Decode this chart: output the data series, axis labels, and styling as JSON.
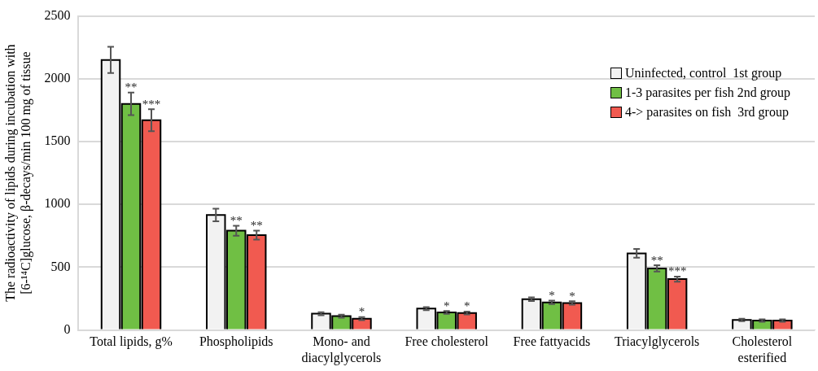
{
  "chart_data": {
    "type": "bar",
    "categories": [
      "Total lipids, g%",
      "Phospholipids",
      "Mono- and diacylglycerols",
      "Free cholesterol",
      "Free fattyacids",
      "Triacylglycerols",
      "Cholesterol esterified"
    ],
    "ylabel": "The radioactivity of lipids during incubation with [6-¹⁴C]glucose, β-decays/min 100 mg of tissue",
    "series": [
      {
        "name": "Uninfected, control  1st group",
        "color": "#f2f2f2",
        "values": [
          2150,
          915,
          130,
          170,
          245,
          610,
          80
        ],
        "errors": [
          105,
          50,
          12,
          12,
          14,
          35,
          10
        ],
        "value_labels": [
          null,
          null,
          null,
          null,
          null,
          null,
          null
        ]
      },
      {
        "name": "1-3 parasites per fish 2nd group",
        "color": "#70bf44",
        "values": [
          1800,
          790,
          110,
          140,
          220,
          490,
          75
        ],
        "errors": [
          90,
          40,
          12,
          12,
          14,
          25,
          10
        ],
        "value_labels": [
          "**",
          "**",
          null,
          "*",
          "*",
          "**",
          null
        ]
      },
      {
        "name": "4-> parasites on fish  3rd group",
        "color": "#f15a50",
        "values": [
          1670,
          755,
          90,
          135,
          215,
          405,
          75
        ],
        "errors": [
          88,
          35,
          12,
          12,
          14,
          20,
          10
        ],
        "value_labels": [
          "***",
          "**",
          "*",
          "*",
          "*",
          "***",
          null
        ]
      }
    ],
    "ylim": [
      0,
      2500
    ],
    "yticks": [
      0,
      500,
      1000,
      1500,
      2000,
      2500
    ],
    "grid": "y",
    "legend": "top right"
  }
}
